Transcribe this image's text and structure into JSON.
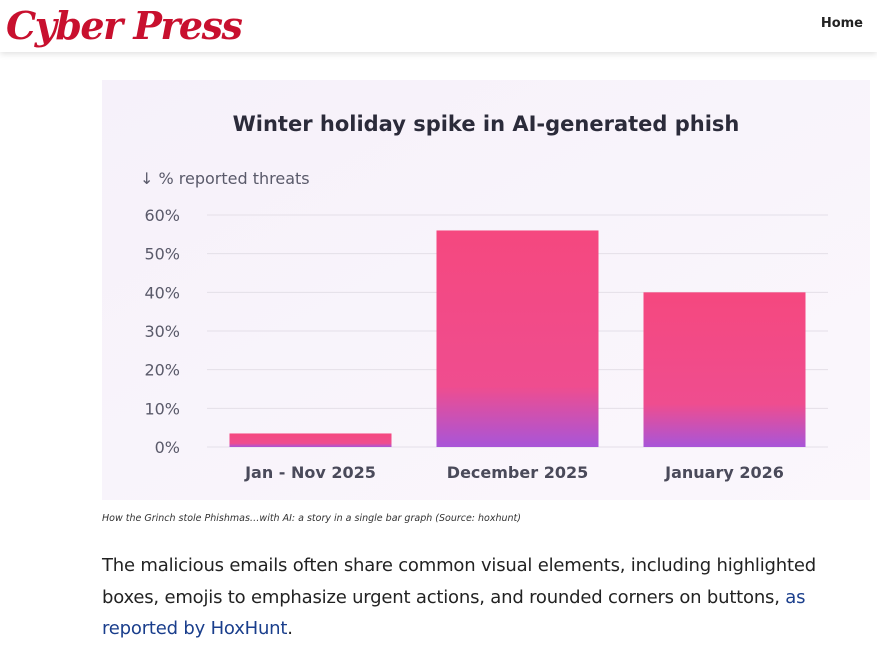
{
  "header": {
    "logo_text": "Cyber Press",
    "nav_home": "Home"
  },
  "colors": {
    "logo": "#c8102e",
    "bar_top": "#f5487f",
    "bar_bottom": "#a855d8",
    "link": "#1a3e8c",
    "figure_bg": "#f8f3fb"
  },
  "chart_data": {
    "type": "bar",
    "title": "Winter holiday spike in AI-generated phish",
    "ylabel": "↓ % reported threats",
    "categories": [
      "Jan - Nov 2025",
      "December 2025",
      "January 2026"
    ],
    "values": [
      3.5,
      56,
      40
    ],
    "ylim": [
      0,
      60
    ],
    "yticks": [
      "0%",
      "10%",
      "20%",
      "30%",
      "40%",
      "50%",
      "60%"
    ],
    "grid": true,
    "legend": "none"
  },
  "figure": {
    "caption": "How the Grinch stole Phishmas…with AI: a story in a single bar graph (Source: hoxhunt)"
  },
  "article": {
    "text_before_link": "The malicious emails often share common visual elements, including highlighted boxes, emojis to emphasize urgent actions, and rounded corners on buttons, ",
    "link_text": "as reported by HoxHunt",
    "text_after_link": "."
  }
}
